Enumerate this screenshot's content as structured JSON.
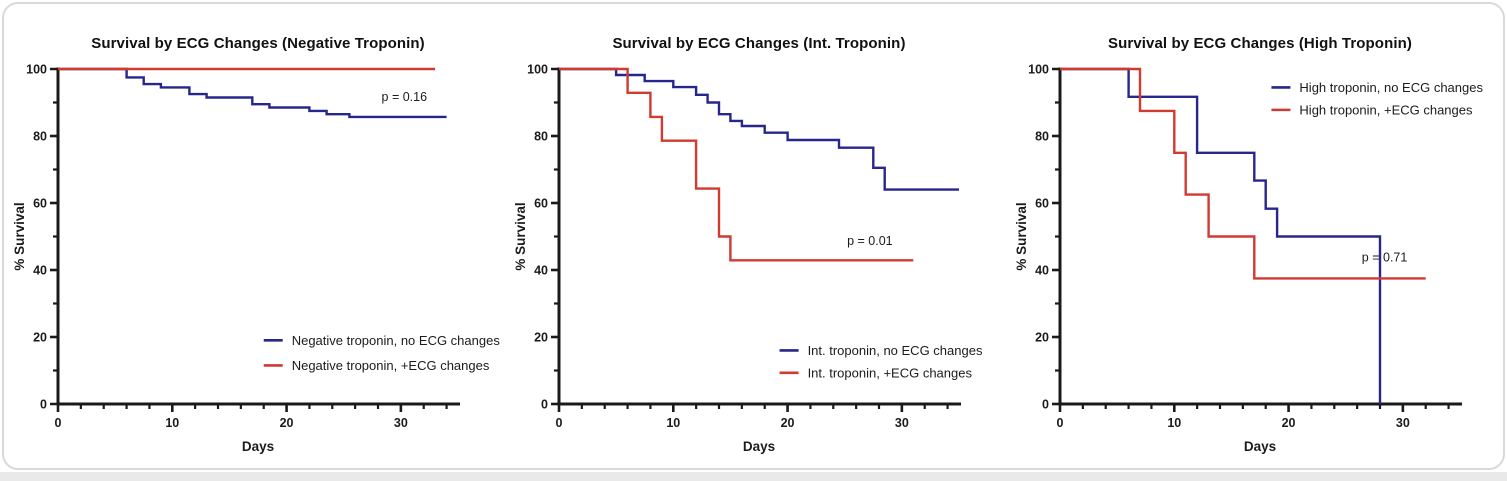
{
  "page": {
    "card_border_color": "#d9d9d9",
    "bottom_strip_color": "#e9e9e9",
    "background": "#ffffff"
  },
  "chart_data": [
    {
      "type": "line",
      "chart_kind": "kaplan-meier-step",
      "title": "Survival by ECG Changes (Negative Troponin)",
      "xlabel": "Days",
      "ylabel": "% Survival",
      "xlim": [
        0,
        35
      ],
      "ylim": [
        0,
        100
      ],
      "xticks": [
        0,
        10,
        20,
        30
      ],
      "yticks": [
        0,
        20,
        40,
        60,
        80,
        100
      ],
      "minor_x_step": 2,
      "minor_y_step": 10,
      "grid": false,
      "annotation": {
        "text": "p = 0.16",
        "x": 30.3,
        "y": 90.5
      },
      "legend": {
        "position": "inside-bottom-right",
        "x": 18,
        "y_items": [
          19,
          11.5
        ]
      },
      "series": [
        {
          "name": "Negative troponin, no ECG changes",
          "color": "#26268c",
          "points": [
            [
              0,
              100
            ],
            [
              6,
              100
            ],
            [
              6,
              97.5
            ],
            [
              7.5,
              97.5
            ],
            [
              7.5,
              95.5
            ],
            [
              9,
              95.5
            ],
            [
              9,
              94.5
            ],
            [
              11.5,
              94.5
            ],
            [
              11.5,
              92.5
            ],
            [
              13,
              92.5
            ],
            [
              13,
              91.5
            ],
            [
              17,
              91.5
            ],
            [
              17,
              89.5
            ],
            [
              18.5,
              89.5
            ],
            [
              18.5,
              88.5
            ],
            [
              22,
              88.5
            ],
            [
              22,
              87.5
            ],
            [
              23.5,
              87.5
            ],
            [
              23.5,
              86.5
            ],
            [
              25.5,
              86.5
            ],
            [
              25.5,
              85.7
            ],
            [
              34,
              85.7
            ]
          ]
        },
        {
          "name": "Negative troponin, +ECG changes",
          "color": "#cf3a31",
          "points": [
            [
              0,
              100
            ],
            [
              33,
              100
            ]
          ]
        }
      ]
    },
    {
      "type": "line",
      "chart_kind": "kaplan-meier-step",
      "title": "Survival by ECG Changes (Int. Troponin)",
      "xlabel": "Days",
      "ylabel": "% Survival",
      "xlim": [
        0,
        35
      ],
      "ylim": [
        0,
        100
      ],
      "xticks": [
        0,
        10,
        20,
        30
      ],
      "yticks": [
        0,
        20,
        40,
        60,
        80,
        100
      ],
      "minor_x_step": 2,
      "minor_y_step": 10,
      "grid": false,
      "annotation": {
        "text": "p = 0.01",
        "x": 27.2,
        "y": 47.5
      },
      "legend": {
        "position": "inside-bottom-right",
        "x": 19.3,
        "y_items": [
          16,
          9.3
        ]
      },
      "series": [
        {
          "name": "Int. troponin, no ECG changes",
          "color": "#26268c",
          "points": [
            [
              0,
              100
            ],
            [
              5,
              100
            ],
            [
              5,
              98.2
            ],
            [
              7.5,
              98.2
            ],
            [
              7.5,
              96.4
            ],
            [
              10,
              96.4
            ],
            [
              10,
              94.6
            ],
            [
              12,
              94.6
            ],
            [
              12,
              92.3
            ],
            [
              13,
              92.3
            ],
            [
              13,
              90
            ],
            [
              14,
              90
            ],
            [
              14,
              86.5
            ],
            [
              15,
              86.5
            ],
            [
              15,
              84.5
            ],
            [
              16,
              84.5
            ],
            [
              16,
              83
            ],
            [
              18,
              83
            ],
            [
              18,
              81
            ],
            [
              20,
              81
            ],
            [
              20,
              78.8
            ],
            [
              24.5,
              78.8
            ],
            [
              24.5,
              76.5
            ],
            [
              27.5,
              76.5
            ],
            [
              27.5,
              70.5
            ],
            [
              28.5,
              70.5
            ],
            [
              28.5,
              64
            ],
            [
              35,
              64
            ]
          ]
        },
        {
          "name": "Int. troponin, +ECG changes",
          "color": "#cf3a31",
          "points": [
            [
              0,
              100
            ],
            [
              6,
              100
            ],
            [
              6,
              92.9
            ],
            [
              8,
              92.9
            ],
            [
              8,
              85.7
            ],
            [
              9,
              85.7
            ],
            [
              9,
              78.6
            ],
            [
              12,
              78.6
            ],
            [
              12,
              64.3
            ],
            [
              14,
              64.3
            ],
            [
              14,
              50
            ],
            [
              15,
              50
            ],
            [
              15,
              42.9
            ],
            [
              31,
              42.9
            ]
          ]
        }
      ]
    },
    {
      "type": "line",
      "chart_kind": "kaplan-meier-step",
      "title": "Survival by ECG Changes (High Troponin)",
      "xlabel": "Days",
      "ylabel": "% Survival",
      "xlim": [
        0,
        35
      ],
      "ylim": [
        0,
        100
      ],
      "xticks": [
        0,
        10,
        20,
        30
      ],
      "yticks": [
        0,
        20,
        40,
        60,
        80,
        100
      ],
      "minor_x_step": 2,
      "minor_y_step": 10,
      "grid": false,
      "annotation": {
        "text": "p = 0.71",
        "x": 28.4,
        "y": 42.5
      },
      "legend": {
        "position": "inside-top-right",
        "x": 18.5,
        "y_items": [
          94.5,
          87.8
        ]
      },
      "series": [
        {
          "name": "High troponin, no ECG changes",
          "color": "#26268c",
          "points": [
            [
              0,
              100
            ],
            [
              6,
              100
            ],
            [
              6,
              91.7
            ],
            [
              12,
              91.7
            ],
            [
              12,
              75
            ],
            [
              17,
              75
            ],
            [
              17,
              66.7
            ],
            [
              18,
              66.7
            ],
            [
              18,
              58.3
            ],
            [
              19,
              58.3
            ],
            [
              19,
              50
            ],
            [
              28,
              50
            ],
            [
              28,
              0
            ]
          ]
        },
        {
          "name": "High troponin, +ECG changes",
          "color": "#cf3a31",
          "points": [
            [
              0,
              100
            ],
            [
              7,
              100
            ],
            [
              7,
              87.5
            ],
            [
              10,
              87.5
            ],
            [
              10,
              75
            ],
            [
              11,
              75
            ],
            [
              11,
              62.5
            ],
            [
              13,
              62.5
            ],
            [
              13,
              50
            ],
            [
              17,
              50
            ],
            [
              17,
              37.5
            ],
            [
              32,
              37.5
            ]
          ]
        }
      ]
    }
  ]
}
